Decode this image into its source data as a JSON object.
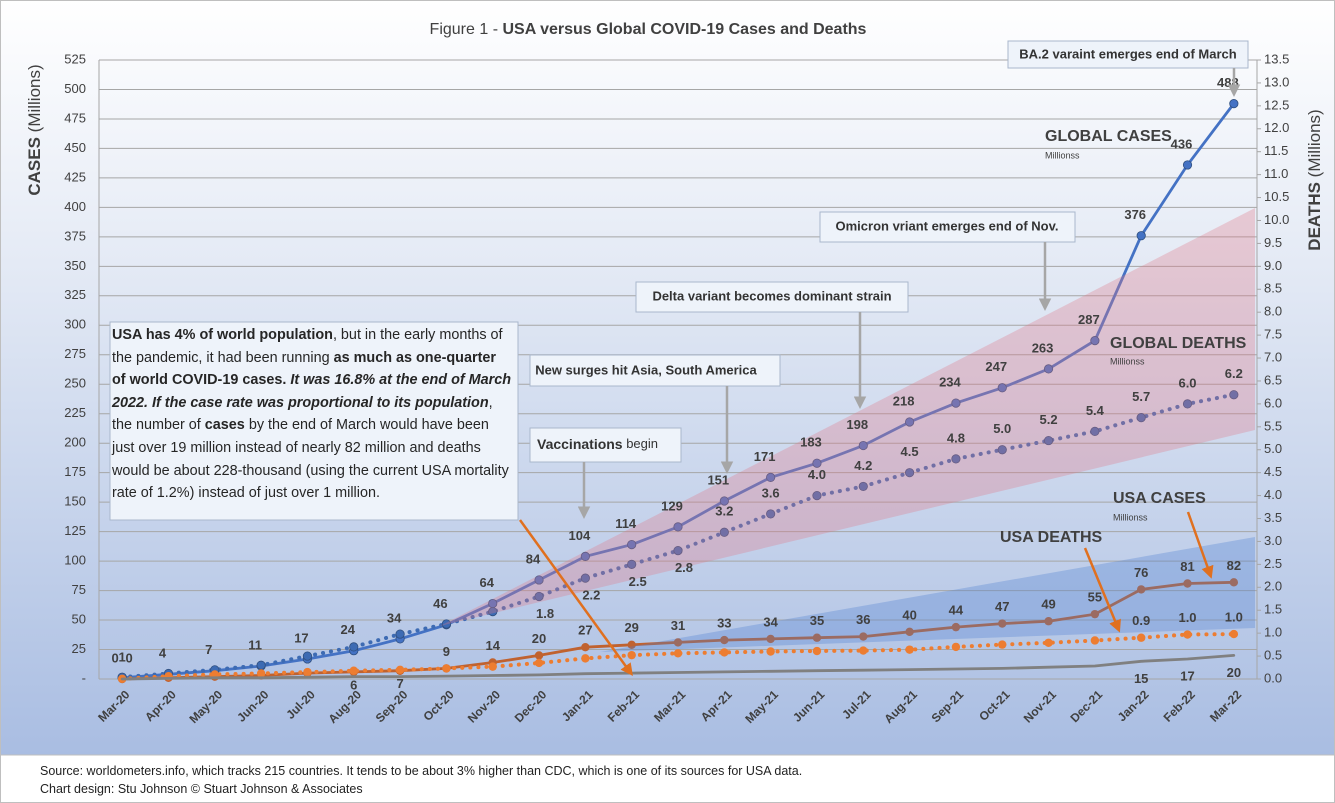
{
  "chart_data": {
    "type": "line",
    "title_prefix": "Figure 1 - ",
    "title": "USA versus Global COVID-19 Cases and Deaths",
    "y_label": "CASES",
    "y_label_unit": "(Millions)",
    "y2_label": "DEATHS",
    "y2_label_unit": "(Millions)",
    "categories": [
      "Mar-20",
      "Apr-20",
      "May-20",
      "Jun-20",
      "Jul-20",
      "Aug-20",
      "Sep-20",
      "Oct-20",
      "Nov-20",
      "Dec-20",
      "Jan-21",
      "Feb-21",
      "Mar-21",
      "Apr-21",
      "May-21",
      "Jun-21",
      "Jul-21",
      "Aug-21",
      "Sep-21",
      "Oct-21",
      "Nov-21",
      "Dec-21",
      "Jan-22",
      "Feb-22",
      "Mar-22"
    ],
    "ylim": [
      0,
      525
    ],
    "yticks": [
      {
        "value": 0,
        "label": "-"
      },
      25,
      50,
      75,
      100,
      125,
      150,
      175,
      200,
      225,
      250,
      275,
      300,
      325,
      350,
      375,
      400,
      425,
      450,
      475,
      500,
      525
    ],
    "y2lim": [
      0,
      13.5
    ],
    "y2ticks": [
      {
        "value": 0,
        "label": "0.0"
      },
      0.5,
      {
        "value": 1,
        "label": "1.0"
      },
      1.5,
      {
        "value": 2,
        "label": "2.0"
      },
      2.5,
      {
        "value": 3,
        "label": "3.0"
      },
      3.5,
      {
        "value": 4,
        "label": "4.0"
      },
      4.5,
      {
        "value": 5,
        "label": "5.0"
      },
      5.5,
      {
        "value": 6,
        "label": "6.0"
      },
      6.5,
      {
        "value": 7,
        "label": "7.0"
      },
      7.5,
      {
        "value": 8,
        "label": "8.0"
      },
      8.5,
      {
        "value": 9,
        "label": "9.0"
      },
      9.5,
      {
        "value": 10,
        "label": "10.0"
      },
      10.5,
      {
        "value": 11,
        "label": "11.0"
      },
      11.5,
      {
        "value": 12,
        "label": "12.0"
      },
      12.5,
      {
        "value": 13,
        "label": "13.0"
      },
      13.5
    ],
    "grid": true,
    "series": [
      {
        "name": "GLOBAL CASES",
        "unit_note": "Millionss",
        "color": "#4472c4",
        "style": "solid",
        "values": [
          1,
          4,
          7,
          11,
          17,
          24,
          34,
          46,
          64,
          84,
          104,
          114,
          129,
          151,
          171,
          183,
          198,
          218,
          234,
          247,
          263,
          287,
          376,
          436,
          488
        ],
        "value_labels": [
          "1",
          "4",
          "7",
          "11",
          "17",
          "24",
          "34",
          "46",
          "64",
          "84",
          "104",
          "114",
          "129",
          "151",
          "171",
          "183",
          "198",
          "218",
          "234",
          "247",
          "263",
          "287",
          "376",
          "436",
          "488"
        ]
      },
      {
        "name": "GLOBAL DEATHS",
        "unit_note": "Millionss",
        "color": "#3d6bb3",
        "style": "dotted",
        "axis": "y2",
        "values": [
          0.04,
          0.12,
          0.2,
          0.3,
          0.5,
          0.7,
          0.98,
          1.2,
          1.47,
          1.8,
          2.2,
          2.5,
          2.8,
          3.2,
          3.6,
          4.0,
          4.2,
          4.5,
          4.8,
          5.0,
          5.2,
          5.4,
          5.7,
          6.0,
          6.2
        ],
        "value_labels": [
          null,
          null,
          null,
          null,
          null,
          null,
          null,
          null,
          null,
          "1.8",
          "2.2",
          "2.5",
          "2.8",
          "3.2",
          "3.6",
          "4.0",
          "4.2",
          "4.5",
          "4.8",
          "5.0",
          "5.2",
          "5.4",
          "5.7",
          "6.0",
          "6.2"
        ]
      },
      {
        "name": "USA CASES",
        "unit_note": "Millionss",
        "color": "#c0622f",
        "style": "solid",
        "values": [
          0,
          1,
          2,
          3,
          5,
          6,
          7,
          9,
          14,
          20,
          27,
          29,
          31,
          33,
          34,
          35,
          36,
          40,
          44,
          47,
          49,
          55,
          76,
          81,
          82
        ],
        "value_labels": [
          "0",
          null,
          null,
          null,
          null,
          "6",
          "7",
          "9",
          "14",
          "20",
          "27",
          "29",
          "31",
          "33",
          "34",
          "35",
          "36",
          "40",
          "44",
          "47",
          "49",
          "55",
          "76",
          "81",
          "82"
        ]
      },
      {
        "name": "USA DEATHS",
        "color": "#ed7d31",
        "style": "dotted",
        "axis": "y2",
        "values": [
          0.004,
          0.06,
          0.1,
          0.12,
          0.15,
          0.18,
          0.2,
          0.23,
          0.27,
          0.35,
          0.45,
          0.52,
          0.56,
          0.58,
          0.6,
          0.61,
          0.62,
          0.64,
          0.7,
          0.75,
          0.79,
          0.84,
          0.9,
          0.97,
          0.98
        ],
        "value_labels": [
          null,
          null,
          null,
          null,
          null,
          null,
          null,
          null,
          null,
          null,
          null,
          null,
          null,
          null,
          null,
          null,
          null,
          null,
          null,
          null,
          null,
          null,
          "0.9",
          "1.0",
          "1.0"
        ]
      },
      {
        "color": "#808080",
        "style": "solid",
        "values": [
          0,
          0.5,
          1,
          1,
          1.5,
          2,
          2,
          2.5,
          3,
          3.5,
          4.5,
          5,
          5.5,
          6,
          6.5,
          7,
          7.5,
          8,
          8.5,
          9,
          10,
          11,
          15,
          17,
          20
        ],
        "value_labels": [
          "0",
          null,
          null,
          null,
          null,
          null,
          null,
          null,
          null,
          null,
          null,
          null,
          null,
          null,
          null,
          null,
          null,
          null,
          null,
          null,
          null,
          null,
          "15",
          "17",
          "20"
        ]
      }
    ],
    "annotations": [
      {
        "text": "BA.2 varaint emerges end of March"
      },
      {
        "text": "Omicron vriant emerges end of Nov."
      },
      {
        "text": "Delta variant becomes dominant strain"
      },
      {
        "text": "New surges hit Asia, South America"
      },
      {
        "bold": "Vaccinations",
        "text": " begin"
      }
    ],
    "note": [
      {
        "text": "USA has 4% of world population",
        "style": "b"
      },
      {
        "text": ", but in the early months of the pandemic, it had been running "
      },
      {
        "text": "as much as one-quarter of world COVID-19 cases.",
        "style": "b"
      },
      {
        "text": " "
      },
      {
        "text": "It was 16.8% at the end of March 2022. If the case rate was proportional to its population",
        "style": "bi"
      },
      {
        "text": ", the number of "
      },
      {
        "text": "cases",
        "style": "b"
      },
      {
        "text": " by the end of March would have been  just over 19 million instead of nearly 82 million and deaths would be about 228-thousand (using the current USA mortality rate of 1.2%) instead of just over 1 million."
      }
    ],
    "footer": [
      "Source: worldometers.info, which tracks 215 countries. It tends to be about 3% higher than CDC, which is one of its sources for USA data.",
      "Chart design: Stu Johnson  © Stuart Johnson & Associates"
    ]
  }
}
